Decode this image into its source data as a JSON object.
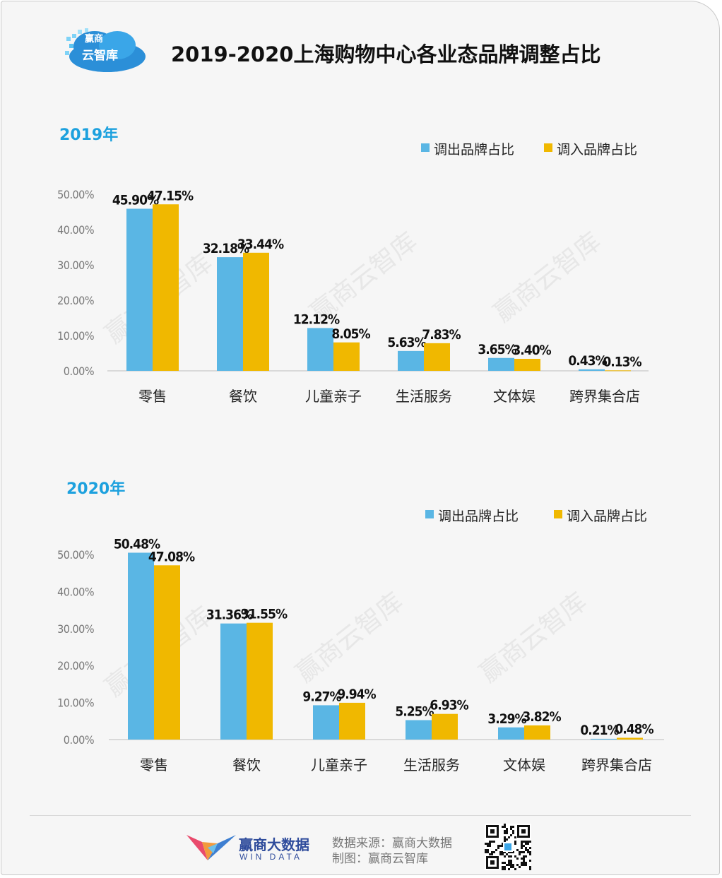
{
  "header": {
    "title": "2019-2020上海购物中心各业态品牌调整占比",
    "logo_line1": "赢商",
    "logo_line2": "云智库"
  },
  "colors": {
    "out": "#5ab6e4",
    "in": "#f0b800",
    "section_title": "#1da1de",
    "watermark": "#e7e7e7"
  },
  "watermark": "赢商云智库",
  "chart_data": [
    {
      "type": "bar",
      "title": "2019年",
      "categories": [
        "零售",
        "餐饮",
        "儿童亲子",
        "生活服务",
        "文体娱",
        "跨界集合店"
      ],
      "series": [
        {
          "name": "调出品牌占比",
          "values": [
            45.9,
            32.18,
            12.12,
            5.63,
            3.65,
            0.43
          ],
          "labels": [
            "45.90%",
            "32.18%",
            "12.12%",
            "5.63%",
            "3.65%",
            "0.43%"
          ]
        },
        {
          "name": "调入品牌占比",
          "values": [
            47.15,
            33.44,
            8.05,
            7.83,
            3.4,
            0.13
          ],
          "labels": [
            "47.15%",
            "33.44%",
            "8.05%",
            "7.83%",
            "3.40%",
            "0.13%"
          ]
        }
      ],
      "y_ticks": [
        "0.00%",
        "10.00%",
        "20.00%",
        "30.00%",
        "40.00%",
        "50.00%"
      ],
      "ylim": [
        0,
        50
      ],
      "grid": false,
      "legend": "top-right"
    },
    {
      "type": "bar",
      "title": "2020年",
      "categories": [
        "零售",
        "餐饮",
        "儿童亲子",
        "生活服务",
        "文体娱",
        "跨界集合店"
      ],
      "series": [
        {
          "name": "调出品牌占比",
          "values": [
            50.48,
            31.36,
            9.27,
            5.25,
            3.29,
            0.21
          ],
          "labels": [
            "50.48%",
            "31.36%",
            "9.27%",
            "5.25%",
            "3.29%",
            "0.21%"
          ]
        },
        {
          "name": "调入品牌占比",
          "values": [
            47.08,
            31.55,
            9.94,
            6.93,
            3.82,
            0.48
          ],
          "labels": [
            "47.08%",
            "31.55%",
            "9.94%",
            "6.93%",
            "3.82%",
            "0.48%"
          ]
        }
      ],
      "y_ticks": [
        "0.00%",
        "10.00%",
        "20.00%",
        "30.00%",
        "40.00%",
        "50.00%"
      ],
      "ylim": [
        0,
        50
      ],
      "grid": false,
      "legend": "top-right"
    }
  ],
  "footer": {
    "brand_cn": "赢商大数据",
    "brand_en": "WIN DATA",
    "source": "数据来源：赢商大数据",
    "made_by": "制图：赢商云智库"
  }
}
